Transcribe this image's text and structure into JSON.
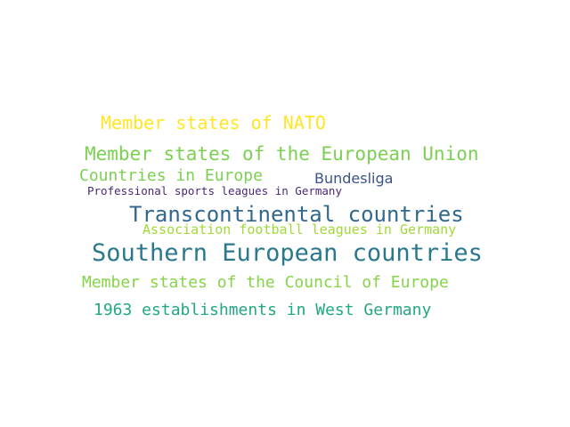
{
  "word_cloud": {
    "words": [
      {
        "text": "Member states of NATO",
        "color": "#fde725"
      },
      {
        "text": "Member states of the European Union",
        "color": "#7ad151"
      },
      {
        "text": "Countries in Europe",
        "color": "#7ad151"
      },
      {
        "text": "Bundesliga",
        "color": "#3b528b"
      },
      {
        "text": "Professional sports leagues in Germany",
        "color": "#482878"
      },
      {
        "text": "Transcontinental countries",
        "color": "#31688e"
      },
      {
        "text": "Association football leagues in Germany",
        "color": "#a0da39"
      },
      {
        "text": "Southern European countries",
        "color": "#2a788e"
      },
      {
        "text": "Member states of the Council of Europe",
        "color": "#86d549"
      },
      {
        "text": "1963 establishments in West Germany",
        "color": "#22a884"
      }
    ]
  }
}
